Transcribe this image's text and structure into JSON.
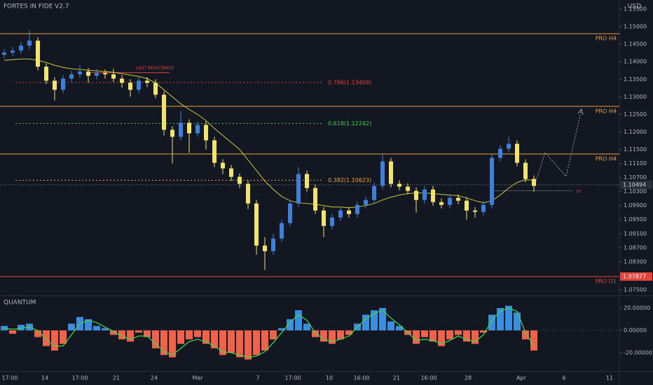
{
  "chart_data": {
    "type": "candlestick",
    "title": "FORTES IN FIDE V2.7",
    "currency": "USD",
    "x_labels": [
      "17:00",
      "14",
      "17:00",
      "21",
      "24",
      "Mar",
      "7",
      "17:00",
      "10",
      "16:00",
      "21",
      "16:00",
      "28",
      "Apr",
      "6",
      "11"
    ],
    "open": [
      1.142,
      1.1426,
      1.1432,
      1.1446,
      1.146,
      1.1386,
      1.1346,
      1.132,
      1.1352,
      1.1364,
      1.1372,
      1.136,
      1.1368,
      1.1364,
      1.1352,
      1.134,
      1.132,
      1.1346,
      1.134,
      1.1306,
      1.1206,
      1.1186,
      1.1226,
      1.1196,
      1.122,
      1.1176,
      1.1112,
      1.1096,
      1.1072,
      1.1052,
      1.0996,
      1.0876,
      1.086,
      1.0896,
      1.094,
      1.0996,
      1.108,
      1.104,
      1.0976,
      1.0932,
      1.0956,
      1.0976,
      1.0966,
      1.0992,
      1.1006,
      1.1046,
      1.1116,
      1.1052,
      1.1044,
      1.1032,
      1.1006,
      1.1036,
      1.1,
      1.0992,
      1.1012,
      1.1004,
      1.0976,
      1.0972,
      1.0992,
      1.1126,
      1.1152,
      1.1166,
      1.1112,
      1.1066
    ],
    "high": [
      1.1436,
      1.1442,
      1.1456,
      1.149,
      1.147,
      1.1396,
      1.1356,
      1.1362,
      1.1374,
      1.139,
      1.1382,
      1.138,
      1.1378,
      1.138,
      1.1362,
      1.135,
      1.136,
      1.1356,
      1.135,
      1.1316,
      1.1216,
      1.126,
      1.1236,
      1.123,
      1.123,
      1.1186,
      1.1122,
      1.1106,
      1.1082,
      1.1062,
      1.1006,
      1.09,
      1.091,
      1.095,
      1.1006,
      1.11,
      1.109,
      1.105,
      1.0986,
      1.0966,
      1.0986,
      1.0986,
      1.1002,
      1.1016,
      1.1056,
      1.1136,
      1.1126,
      1.1062,
      1.1054,
      1.1042,
      1.1046,
      1.1046,
      1.101,
      1.1022,
      1.1022,
      1.1014,
      1.0986,
      1.1002,
      1.1136,
      1.1162,
      1.1186,
      1.1176,
      1.1122,
      1.1076
    ],
    "low": [
      1.141,
      1.1416,
      1.1422,
      1.1436,
      1.1376,
      1.1336,
      1.129,
      1.131,
      1.1342,
      1.1354,
      1.134,
      1.135,
      1.1352,
      1.1342,
      1.1326,
      1.13,
      1.131,
      1.1328,
      1.1296,
      1.119,
      1.111,
      1.1176,
      1.114,
      1.1186,
      1.115,
      1.11,
      1.108,
      1.106,
      1.104,
      1.098,
      1.085,
      1.0806,
      1.085,
      1.0886,
      1.093,
      1.0986,
      1.103,
      1.0966,
      1.09,
      1.0922,
      1.0946,
      1.0956,
      1.0956,
      1.0982,
      1.0996,
      1.1036,
      1.1042,
      1.1034,
      1.1022,
      1.097,
      1.0996,
      1.099,
      1.0982,
      1.0982,
      1.0994,
      1.095,
      1.0956,
      1.0962,
      1.0982,
      1.1116,
      1.1142,
      1.1102,
      1.1056,
      1.103
    ],
    "close": [
      1.1426,
      1.1432,
      1.1446,
      1.146,
      1.1386,
      1.1346,
      1.132,
      1.1352,
      1.1364,
      1.1372,
      1.136,
      1.1368,
      1.1364,
      1.1352,
      1.134,
      1.132,
      1.1346,
      1.134,
      1.1306,
      1.1206,
      1.1186,
      1.1226,
      1.1196,
      1.122,
      1.1176,
      1.1112,
      1.1096,
      1.1072,
      1.1052,
      1.0996,
      1.0876,
      1.086,
      1.0896,
      1.094,
      1.0996,
      1.108,
      1.104,
      1.0976,
      1.0932,
      1.0956,
      1.0976,
      1.0966,
      1.0992,
      1.1006,
      1.1046,
      1.1116,
      1.1052,
      1.1044,
      1.1032,
      1.1006,
      1.1036,
      1.1,
      1.0992,
      1.1012,
      1.1004,
      1.0976,
      1.0972,
      1.0992,
      1.1126,
      1.1152,
      1.1166,
      1.1112,
      1.1066,
      1.1046
    ],
    "up_color": "#3d7fd9",
    "down_color": "#f2e46b",
    "ma": {
      "color": "#c9c93a",
      "values": [
        1.1404,
        1.1406,
        1.1408,
        1.1408,
        1.1404,
        1.1398,
        1.139,
        1.1384,
        1.138,
        1.1378,
        1.1376,
        1.1374,
        1.1372,
        1.137,
        1.1366,
        1.1362,
        1.1358,
        1.1352,
        1.134,
        1.132,
        1.13,
        1.128,
        1.1264,
        1.125,
        1.1232,
        1.121,
        1.119,
        1.117,
        1.115,
        1.112,
        1.109,
        1.106,
        1.1036,
        1.1016,
        1.1004,
        1.0998,
        1.0996,
        1.0994,
        1.099,
        1.0986,
        1.0986,
        1.0984,
        1.0986,
        1.099,
        1.0996,
        1.1006,
        1.1014,
        1.102,
        1.1024,
        1.1026,
        1.1026,
        1.1024,
        1.1022,
        1.102,
        1.1018,
        1.1012,
        1.1004,
        1.0998,
        1.1004,
        1.102,
        1.104,
        1.1056,
        1.1064,
        1.1062
      ]
    },
    "ylim": [
      1.0734,
      1.1576
    ],
    "yticks": [
      {
        "value": 1.155,
        "label": "1.15500"
      },
      {
        "value": 1.15,
        "label": "1.15000"
      },
      {
        "value": 1.145,
        "label": "1.14500"
      },
      {
        "value": 1.14,
        "label": "1.14000"
      },
      {
        "value": 1.135,
        "label": "1.13500"
      },
      {
        "value": 1.13,
        "label": "1.13000"
      },
      {
        "value": 1.125,
        "label": "1.12500"
      },
      {
        "value": 1.12,
        "label": "1.12000"
      },
      {
        "value": 1.115,
        "label": "1.11500"
      },
      {
        "value": 1.111,
        "label": "1.11100"
      },
      {
        "value": 1.107,
        "label": "1.10700"
      },
      {
        "value": 1.103,
        "label": "1.10300"
      },
      {
        "value": 1.099,
        "label": "1.09900"
      },
      {
        "value": 1.095,
        "label": "1.09500"
      },
      {
        "value": 1.091,
        "label": "1.09100"
      },
      {
        "value": 1.087,
        "label": "1.08700"
      },
      {
        "value": 1.083,
        "label": "1.08300"
      },
      {
        "value": 1.075,
        "label": "1.07500"
      }
    ],
    "levels": [
      {
        "label": "PRO H4",
        "value": 1.148,
        "color": "#e8a33a"
      },
      {
        "label": "PRO H4",
        "value": 1.1273,
        "color": "#e8a33a"
      },
      {
        "label": "PRO H4",
        "value": 1.1137,
        "color": "#e8a33a"
      },
      {
        "label": "PRO D1",
        "value": 1.07877,
        "color": "#e0443a",
        "value_label": "1.07877"
      }
    ],
    "fib_levels": [
      {
        "label": "0.786(1.13409)",
        "value": 1.13409,
        "color": "#e0443a"
      },
      {
        "label": "0.618(1.12242)",
        "value": 1.12242,
        "color": "#3fd24a"
      },
      {
        "label": "0.382(1.10623)",
        "value": 1.10623,
        "color": "#e8a33a"
      }
    ],
    "resistance": {
      "label": "LAST RESISTANCE",
      "value": 1.1369,
      "color": "#e0443a"
    },
    "current_price": {
      "value": 1.10494,
      "label": "1.10494"
    },
    "ft": {
      "label": "FT",
      "value": 1.1032
    },
    "indicator": {
      "title": "QUANTUM",
      "histogram": [
        4,
        -3,
        5,
        6,
        -6,
        -14,
        -18,
        -12,
        6,
        12,
        10,
        4,
        2,
        -4,
        -8,
        -10,
        -2,
        -6,
        -16,
        -22,
        -24,
        -12,
        -8,
        -6,
        -12,
        -16,
        -22,
        -20,
        -24,
        -26,
        -22,
        -18,
        -8,
        2,
        10,
        18,
        6,
        -6,
        -10,
        -12,
        -8,
        -4,
        6,
        14,
        18,
        20,
        8,
        4,
        -4,
        -12,
        -6,
        -10,
        -14,
        -8,
        -4,
        -10,
        -12,
        -2,
        14,
        20,
        22,
        16,
        -8,
        -18
      ],
      "line": [
        2,
        1,
        2,
        3,
        0,
        -8,
        -14,
        -14,
        -4,
        6,
        9,
        7,
        3,
        -1,
        -5,
        -8,
        -5,
        -5,
        -12,
        -19,
        -22,
        -16,
        -10,
        -8,
        -10,
        -14,
        -19,
        -20,
        -22,
        -24,
        -23,
        -19,
        -11,
        -2,
        7,
        14,
        9,
        -2,
        -8,
        -10,
        -8,
        -5,
        3,
        10,
        15,
        18,
        11,
        5,
        -2,
        -9,
        -8,
        -9,
        -12,
        -9,
        -5,
        -8,
        -10,
        -4,
        9,
        17,
        20,
        17,
        -2,
        -14
      ],
      "pos_color": "#3a8ee0",
      "neg_color": "#f0634a",
      "line_color": "#3fd24a",
      "ylim": [
        -36.25,
        30
      ],
      "yticks": [
        {
          "value": 20,
          "label": "20.00000"
        },
        {
          "value": 0,
          "label": "0.00000"
        },
        {
          "value": -20,
          "label": "-20.00000"
        }
      ]
    }
  }
}
